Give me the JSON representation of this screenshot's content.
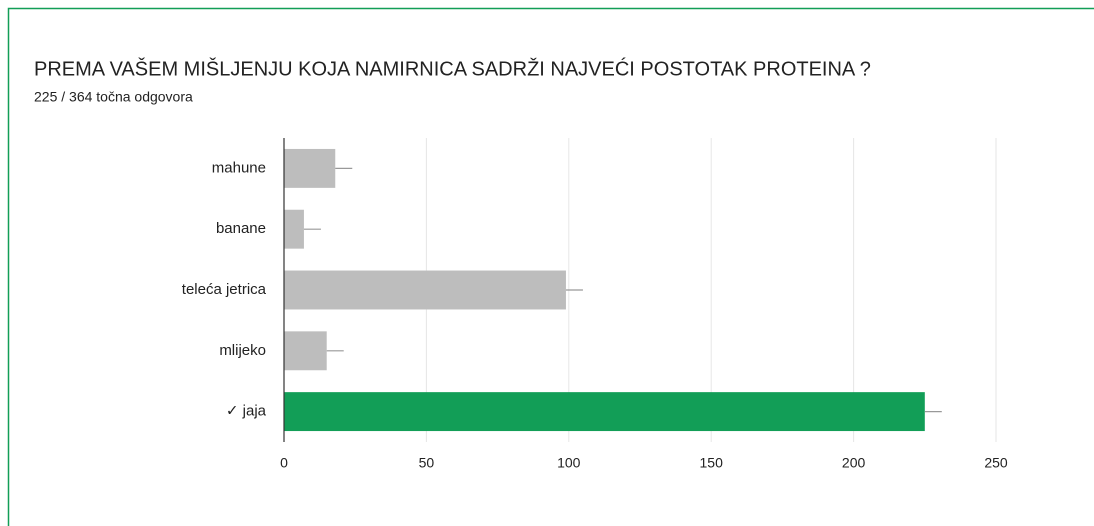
{
  "chart_data": {
    "type": "bar",
    "orientation": "horizontal",
    "title": "PREMA VAŠEM MIŠLJENJU KOJA NAMIRNICA SADRŽI NAJVEĆI POSTOTAK PROTEINA ?",
    "subtitle": "225 / 364 točna odgovora",
    "categories": [
      "mahune",
      "banane",
      "teleća jetrica",
      "mlijeko",
      "✓ jaja"
    ],
    "values": [
      18,
      7,
      99,
      15,
      225
    ],
    "colors": [
      "#bdbdbd",
      "#bdbdbd",
      "#bdbdbd",
      "#bdbdbd",
      "#129e57"
    ],
    "xlim": [
      0,
      250
    ],
    "xticks": [
      0,
      50,
      100,
      150,
      200,
      250
    ],
    "grid": true
  }
}
